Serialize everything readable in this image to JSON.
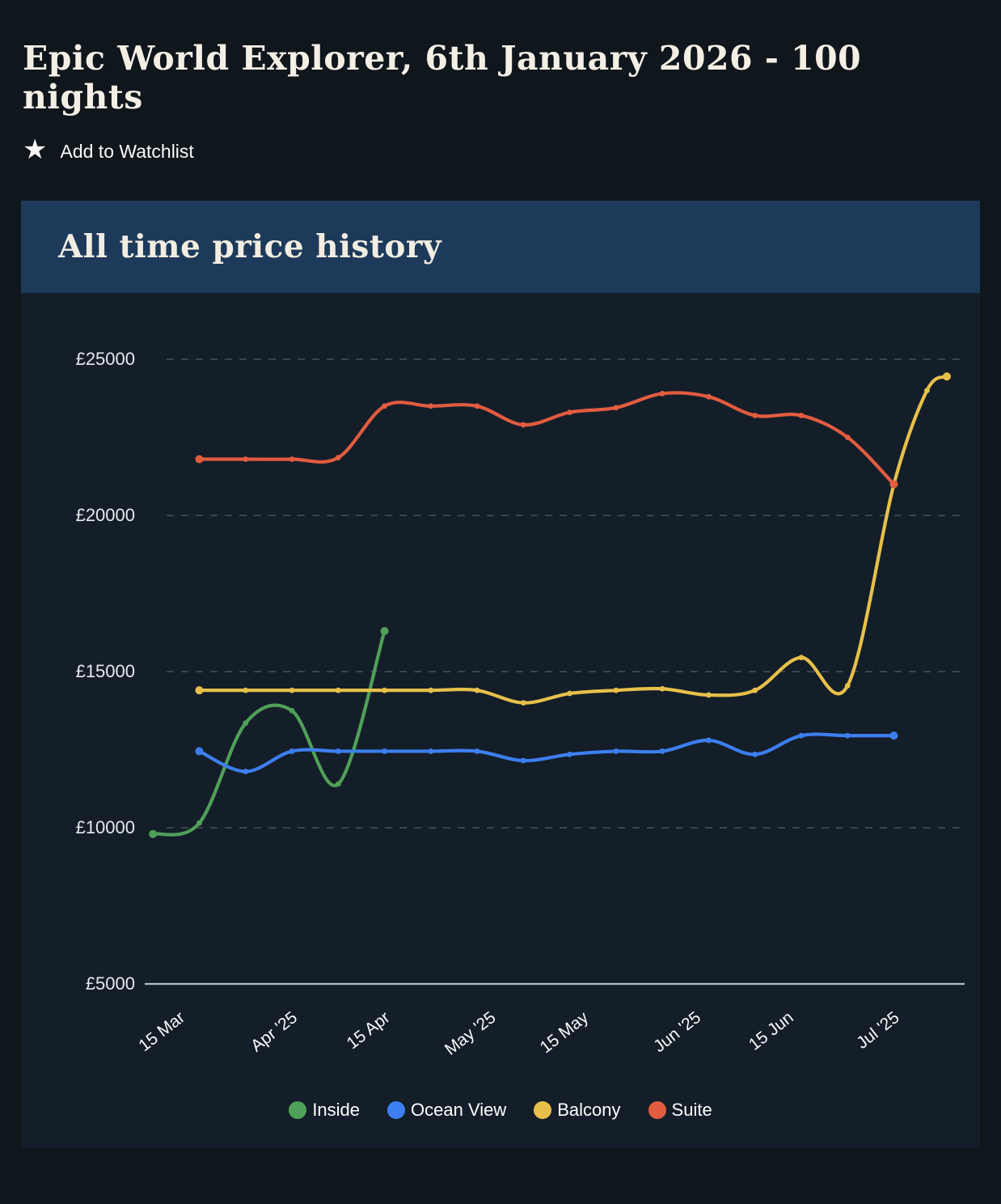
{
  "page": {
    "title": "Epic World Explorer, 6th January 2026 - 100 nights",
    "watchlist_label": "Add to Watchlist",
    "star_icon": "★"
  },
  "card": {
    "header": "All time price history"
  },
  "colors": {
    "page_background": "#0f161c",
    "card_background": "#141e29",
    "card_header_background": "#1d3a5a",
    "gridline": "#46505a",
    "axis_line": "#b6bcc2",
    "axis_text": "#e6e9ec",
    "inside": "#4fa058",
    "ocean_view": "#3d7ff0",
    "balcony": "#e7c04b",
    "suite": "#e25c3f"
  },
  "chart_data": {
    "type": "line",
    "title": "All time price history",
    "currency": "£",
    "x_axis_note": "days since 10 Mar 2025, weekly sampled prices",
    "xlim": [
      0,
      121
    ],
    "ylim": [
      5000,
      25000
    ],
    "grid": "dashed horizontal gridlines, solid baseline at 5000",
    "legend_position": "bottom-center",
    "yticks": [
      {
        "value": 25000,
        "label": "£25000"
      },
      {
        "value": 20000,
        "label": "£20000"
      },
      {
        "value": 15000,
        "label": "£15000"
      },
      {
        "value": 10000,
        "label": "£10000"
      },
      {
        "value": 5000,
        "label": "£5000"
      }
    ],
    "xticks": [
      {
        "day": 5,
        "label": "15 Mar"
      },
      {
        "day": 22,
        "label": "Apr '25"
      },
      {
        "day": 36,
        "label": "15 Apr"
      },
      {
        "day": 52,
        "label": "May '25"
      },
      {
        "day": 66,
        "label": "15 May"
      },
      {
        "day": 83,
        "label": "Jun '25"
      },
      {
        "day": 97,
        "label": "15 Jun"
      },
      {
        "day": 113,
        "label": "Jul '25"
      }
    ],
    "series": [
      {
        "name": "Inside",
        "color": "#4fa058",
        "points": [
          [
            1,
            9800
          ],
          [
            8,
            10150
          ],
          [
            15,
            13350
          ],
          [
            22,
            13750
          ],
          [
            29,
            11400
          ],
          [
            36,
            16300
          ]
        ]
      },
      {
        "name": "Ocean View",
        "color": "#3d7ff0",
        "points": [
          [
            8,
            12450
          ],
          [
            15,
            11800
          ],
          [
            22,
            12450
          ],
          [
            29,
            12450
          ],
          [
            36,
            12450
          ],
          [
            43,
            12450
          ],
          [
            50,
            12450
          ],
          [
            57,
            12150
          ],
          [
            64,
            12350
          ],
          [
            71,
            12450
          ],
          [
            78,
            12450
          ],
          [
            85,
            12800
          ],
          [
            92,
            12350
          ],
          [
            99,
            12950
          ],
          [
            106,
            12950
          ],
          [
            113,
            12950
          ]
        ]
      },
      {
        "name": "Balcony",
        "color": "#e7c04b",
        "points": [
          [
            8,
            14400
          ],
          [
            15,
            14400
          ],
          [
            22,
            14400
          ],
          [
            29,
            14400
          ],
          [
            36,
            14400
          ],
          [
            43,
            14400
          ],
          [
            50,
            14400
          ],
          [
            57,
            14000
          ],
          [
            64,
            14300
          ],
          [
            71,
            14400
          ],
          [
            78,
            14450
          ],
          [
            85,
            14250
          ],
          [
            92,
            14400
          ],
          [
            99,
            15450
          ],
          [
            106,
            14550
          ],
          [
            113,
            21000
          ],
          [
            118,
            24000
          ],
          [
            121,
            24450
          ]
        ]
      },
      {
        "name": "Suite",
        "color": "#e25c3f",
        "points": [
          [
            8,
            21800
          ],
          [
            15,
            21800
          ],
          [
            22,
            21800
          ],
          [
            29,
            21850
          ],
          [
            36,
            23500
          ],
          [
            43,
            23500
          ],
          [
            50,
            23500
          ],
          [
            57,
            22900
          ],
          [
            64,
            23300
          ],
          [
            71,
            23450
          ],
          [
            78,
            23900
          ],
          [
            85,
            23800
          ],
          [
            92,
            23200
          ],
          [
            99,
            23200
          ],
          [
            106,
            22500
          ],
          [
            113,
            21000
          ]
        ]
      }
    ]
  }
}
